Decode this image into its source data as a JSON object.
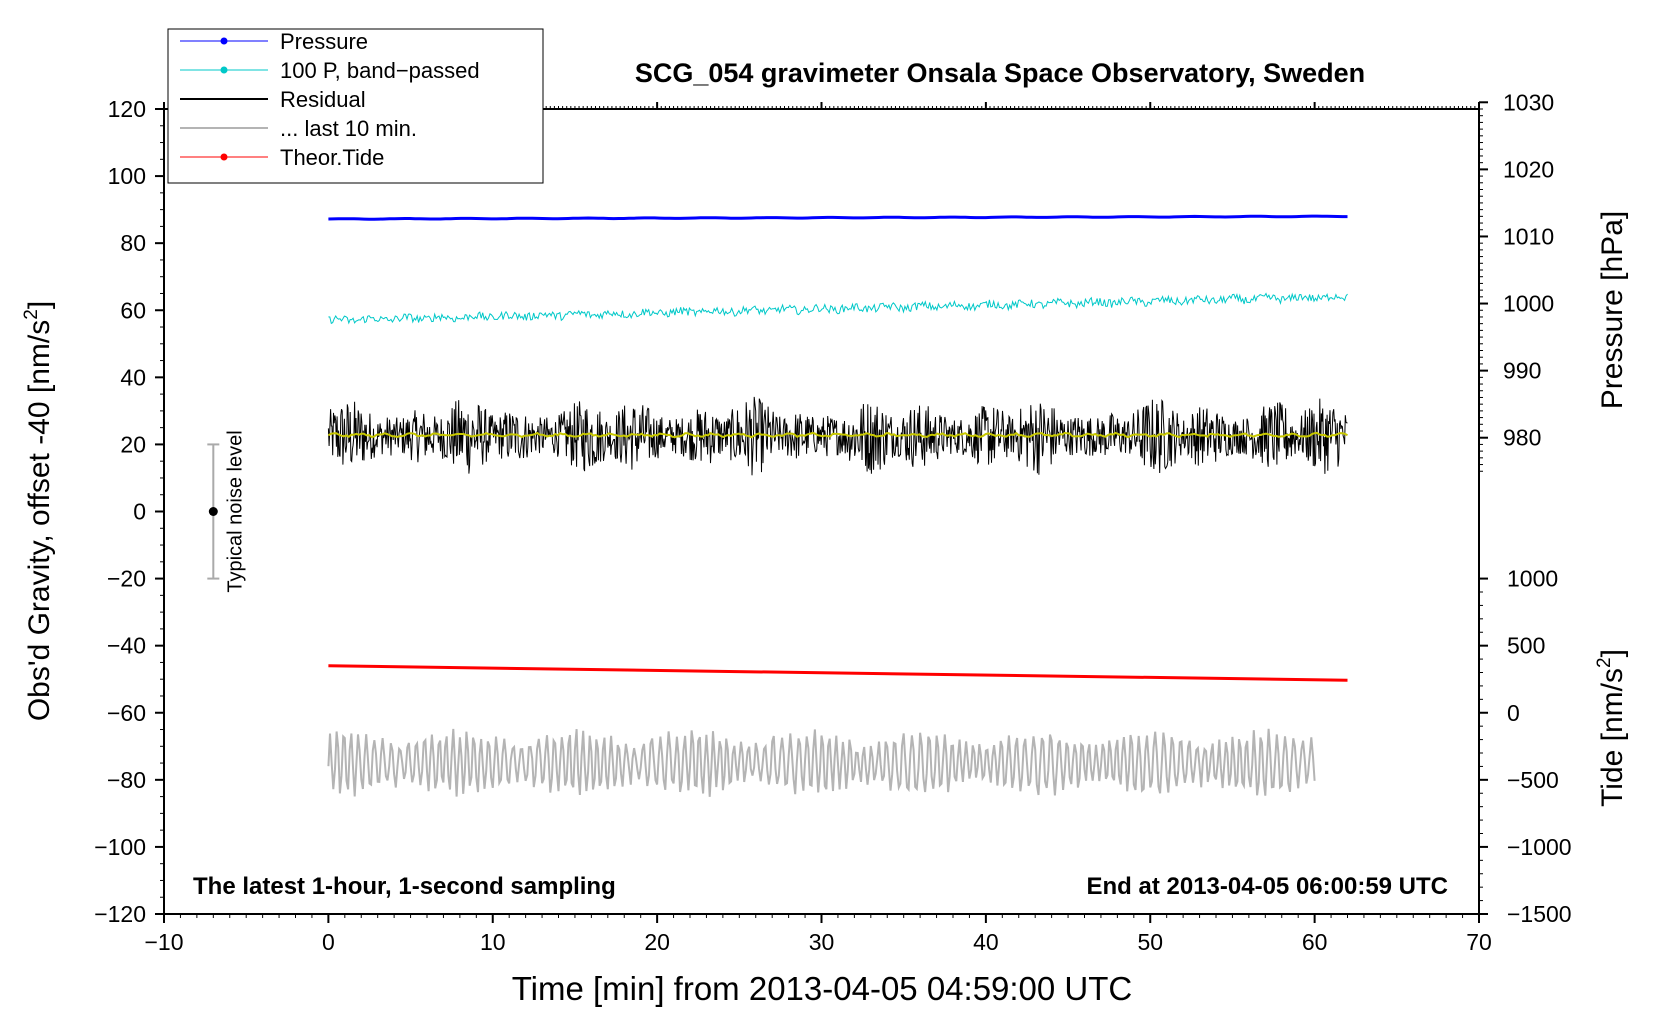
{
  "chart_data": {
    "type": "line",
    "title": "SCG_054 gravimeter Onsala Space Observatory, Sweden",
    "xlabel": "Time [min] from 2013-04-05 04:59:00 UTC",
    "ylabel": "Obs'd Gravity, offset -40 [nm/s",
    "ylabel_unit_exp": "2",
    "ylabel_unit_close": "]",
    "xlim": [
      -10,
      70
    ],
    "ylim": [
      -120,
      120
    ],
    "x_ticks": [
      -10,
      0,
      10,
      20,
      30,
      40,
      50,
      60,
      70
    ],
    "x_tick_labels": [
      "−10",
      "0",
      "10",
      "20",
      "30",
      "40",
      "50",
      "60",
      "70"
    ],
    "y_ticks": [
      120,
      100,
      80,
      60,
      40,
      20,
      0,
      -20,
      -40,
      -60,
      -80,
      -100,
      -120
    ],
    "y_tick_labels": [
      "120",
      "100",
      "80",
      "60",
      "40",
      "20",
      "0",
      "−20",
      "−40",
      "−60",
      "−80",
      "−100",
      "−120"
    ],
    "pressure_axis": {
      "label": "Pressure [hPa]",
      "ticks": [
        1030,
        1020,
        1010,
        1000,
        990,
        980
      ],
      "tick_labels": [
        "1030",
        "1020",
        "1010",
        "1000",
        "990",
        "980"
      ],
      "left_axis_at_980": 22,
      "left_units_per_hPa": 2
    },
    "tide_axis": {
      "label": "Tide [nm/s",
      "label_exp": "2",
      "label_close": "]",
      "ticks": [
        1000,
        500,
        0,
        -500,
        -1000,
        -1500
      ],
      "tick_labels": [
        "1000",
        "500",
        "0",
        "−500",
        "−1000",
        "−1500"
      ],
      "left_axis_at_0": -60,
      "left_units_per_unit": 0.04
    },
    "legend": {
      "position": "top-left",
      "entries": [
        {
          "label": "Pressure",
          "color": "#0000ff",
          "style": "line-dot"
        },
        {
          "label": "100 P, band−passed",
          "color": "#00c8c8",
          "style": "line-dot"
        },
        {
          "label": "Residual",
          "color": "#000000",
          "style": "line"
        },
        {
          "label": "... last 10 min.",
          "color": "#b4b4b4",
          "style": "line"
        },
        {
          "label": "Theor.Tide",
          "color": "#ff0000",
          "style": "line-dot"
        }
      ]
    },
    "series": [
      {
        "name": "Pressure",
        "color": "#0000ff",
        "x_start": 0,
        "x_end": 62,
        "y_start": 87.2,
        "y_end": 88.0,
        "noise": 0.3
      },
      {
        "name": "100 P, band−passed",
        "color": "#00c8c8",
        "x_start": 0,
        "x_end": 62,
        "y_start": 57.0,
        "y_end": 64.0,
        "noise": 1.2
      },
      {
        "name": "Residual",
        "color": "#000000",
        "x_start": 0,
        "x_end": 62,
        "y_mean": 22.5,
        "noise_amplitude": 12
      },
      {
        "name": "Residual (smoothed)",
        "color": "#c8c800",
        "x_start": 0,
        "x_end": 62,
        "y_mean": 22.8,
        "noise": 0.6
      },
      {
        "name": "Theor.Tide",
        "color": "#ff0000",
        "x_start": 0,
        "x_end": 62,
        "y_start": -46.0,
        "y_end": -50.3
      },
      {
        "name": "... last 10 min.",
        "color": "#b4b4b4",
        "x_start": 0,
        "x_end": 60,
        "y_mean": -75.0,
        "amplitude": 9
      }
    ],
    "noise_bar": {
      "x": -7,
      "y_low": -20,
      "y_high": 20,
      "center": 0,
      "label": "Typical noise level"
    },
    "annotations": {
      "bottom_left": "The latest 1-hour, 1-second sampling",
      "bottom_right": "End at 2013-04-05 06:00:59 UTC"
    }
  }
}
